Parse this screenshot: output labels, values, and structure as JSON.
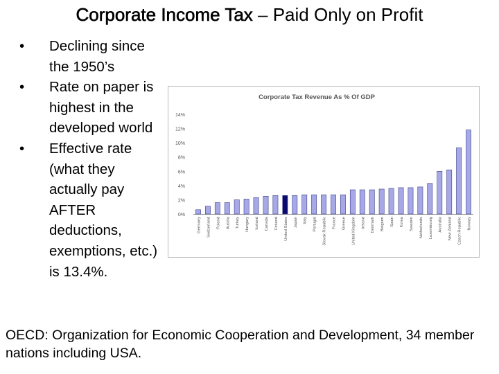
{
  "slide": {
    "title_bold": "Corporate Income Tax",
    "title_rest": " – Paid Only on Profit",
    "bullets": [
      "Declining since the 1950’s",
      "Rate on paper is highest in the developed world",
      "Effective rate (what they actually pay AFTER deductions, exemptions, etc.) is 13.4%."
    ],
    "bullet_glyph": "•",
    "footer": "OECD: Organization for Economic Cooperation and Development, 34 member nations including USA."
  },
  "chart_data": {
    "type": "bar",
    "title": "Corporate Tax Revenue As % Of GDP",
    "categories": [
      "Germany",
      "Switzerland",
      "Poland",
      "Austria",
      "Turkey",
      "Hungary",
      "Iceland",
      "Canada",
      "Finland",
      "United States",
      "Japan",
      "Italy",
      "Portugal",
      "Slovak Republic",
      "France",
      "Greece",
      "United Kingdom",
      "Ireland",
      "Denmark",
      "Belgium",
      "Spain",
      "Korea",
      "Sweden",
      "Netherlands",
      "Luxembourg",
      "Australia",
      "New Zealand",
      "Czech Republic",
      "Norway"
    ],
    "values": [
      0.6,
      1.1,
      1.6,
      1.6,
      2.0,
      2.1,
      2.3,
      2.5,
      2.6,
      2.6,
      2.6,
      2.7,
      2.7,
      2.7,
      2.7,
      2.7,
      3.4,
      3.4,
      3.4,
      3.5,
      3.6,
      3.7,
      3.7,
      3.8,
      4.3,
      6.0,
      6.2,
      9.3,
      11.8
    ],
    "highlight": "United States",
    "ylim": [
      0,
      14
    ],
    "yticks": [
      "0%",
      "2%",
      "4%",
      "6%",
      "8%",
      "10%",
      "12%",
      "14%"
    ],
    "colors": {
      "bar": "#a6a9e6",
      "bar_stroke": "#3b3f8a",
      "highlight": "#0a0a6e",
      "axis_text": "#555555"
    },
    "grid": false,
    "legend": "none"
  }
}
